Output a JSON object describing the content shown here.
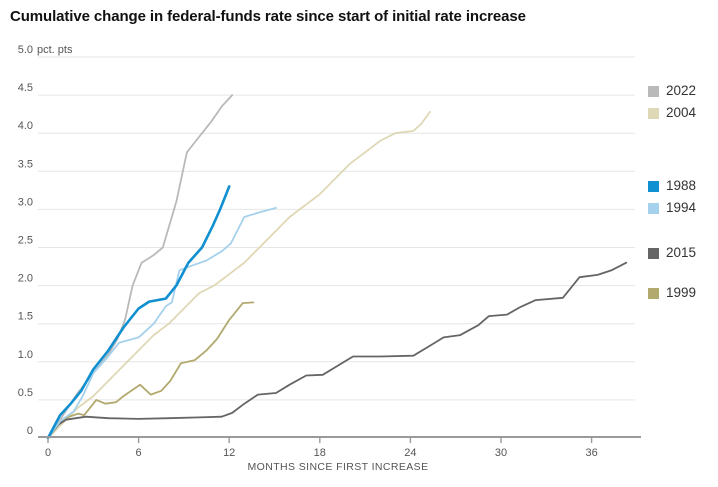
{
  "chart_data": {
    "type": "line",
    "title": "Cumulative change in federal-funds rate since start of initial rate increase",
    "xlabel": "MONTHS SINCE FIRST INCREASE",
    "y_unit_suffix": "pct. pts",
    "x_tick_labels": [
      "0",
      "6",
      "12",
      "18",
      "24",
      "30",
      "36"
    ],
    "x_tick_values": [
      0,
      6,
      12,
      18,
      24,
      30,
      36
    ],
    "y_tick_labels": [
      "0",
      "0.5",
      "1.0",
      "1.5",
      "2.0",
      "2.5",
      "3.0",
      "3.5",
      "4.0",
      "4.5",
      "5.0"
    ],
    "y_tick_values": [
      0,
      0.5,
      1.0,
      1.5,
      2.0,
      2.5,
      3.0,
      3.5,
      4.0,
      4.5,
      5.0
    ],
    "xlim": [
      0,
      38.8
    ],
    "ylim": [
      0,
      5.0
    ],
    "grid": true,
    "legend_position": "right",
    "legend_groups": [
      [
        "2022",
        "2004"
      ],
      [
        "1988",
        "1994"
      ],
      [
        "2015"
      ],
      [
        "1999"
      ]
    ],
    "series": [
      {
        "name": "2004",
        "color": "#ded8b6",
        "points": [
          [
            0,
            0
          ],
          [
            1,
            0.2
          ],
          [
            2,
            0.4
          ],
          [
            3,
            0.55
          ],
          [
            4,
            0.75
          ],
          [
            5,
            0.95
          ],
          [
            6,
            1.15
          ],
          [
            7,
            1.35
          ],
          [
            8,
            1.5
          ],
          [
            9,
            1.7
          ],
          [
            10,
            1.9
          ],
          [
            11,
            2.0
          ],
          [
            12,
            2.15
          ],
          [
            13,
            2.3
          ],
          [
            14,
            2.5
          ],
          [
            15,
            2.7
          ],
          [
            16,
            2.9
          ],
          [
            17,
            3.05
          ],
          [
            18,
            3.2
          ],
          [
            19,
            3.4
          ],
          [
            20,
            3.6
          ],
          [
            21,
            3.75
          ],
          [
            22,
            3.9
          ],
          [
            23,
            4.0
          ],
          [
            24.2,
            4.03
          ],
          [
            24.7,
            4.12
          ],
          [
            25.3,
            4.28
          ]
        ]
      },
      {
        "name": "1999",
        "color": "#b2a96e",
        "points": [
          [
            0,
            0
          ],
          [
            1,
            0.25
          ],
          [
            2,
            0.32
          ],
          [
            2.4,
            0.3
          ],
          [
            3.2,
            0.5
          ],
          [
            3.8,
            0.45
          ],
          [
            4.5,
            0.47
          ],
          [
            5,
            0.55
          ],
          [
            6.1,
            0.7
          ],
          [
            6.8,
            0.57
          ],
          [
            7.5,
            0.62
          ],
          [
            8.1,
            0.75
          ],
          [
            8.8,
            0.98
          ],
          [
            9.7,
            1.02
          ],
          [
            10.5,
            1.15
          ],
          [
            11.2,
            1.3
          ],
          [
            12,
            1.55
          ],
          [
            12.9,
            1.77
          ],
          [
            13.6,
            1.78
          ]
        ]
      },
      {
        "name": "2015",
        "color": "#656565",
        "points": [
          [
            0,
            0
          ],
          [
            0.7,
            0.18
          ],
          [
            1.2,
            0.24
          ],
          [
            2.5,
            0.28
          ],
          [
            4,
            0.26
          ],
          [
            6,
            0.25
          ],
          [
            8,
            0.26
          ],
          [
            10,
            0.27
          ],
          [
            11.5,
            0.28
          ],
          [
            12.2,
            0.33
          ],
          [
            13,
            0.45
          ],
          [
            13.9,
            0.57
          ],
          [
            15.1,
            0.59
          ],
          [
            16,
            0.7
          ],
          [
            17.1,
            0.82
          ],
          [
            18.2,
            0.83
          ],
          [
            19.2,
            0.95
          ],
          [
            20.2,
            1.07
          ],
          [
            22,
            1.07
          ],
          [
            24.2,
            1.08
          ],
          [
            25.2,
            1.2
          ],
          [
            26.2,
            1.32
          ],
          [
            27.3,
            1.35
          ],
          [
            28.5,
            1.48
          ],
          [
            29.2,
            1.6
          ],
          [
            30.4,
            1.62
          ],
          [
            31.3,
            1.72
          ],
          [
            32.3,
            1.81
          ],
          [
            34.1,
            1.84
          ],
          [
            35.2,
            2.11
          ],
          [
            36.4,
            2.14
          ],
          [
            37.3,
            2.2
          ],
          [
            38.3,
            2.3
          ]
        ]
      },
      {
        "name": "2022",
        "color": "#b9b9b9",
        "points": [
          [
            0,
            0
          ],
          [
            0.5,
            0.15
          ],
          [
            1,
            0.3
          ],
          [
            2,
            0.6
          ],
          [
            3,
            0.85
          ],
          [
            4,
            1.1
          ],
          [
            4.6,
            1.3
          ],
          [
            5.1,
            1.55
          ],
          [
            5.6,
            2.0
          ],
          [
            6.2,
            2.3
          ],
          [
            7,
            2.4
          ],
          [
            7.6,
            2.5
          ],
          [
            8.5,
            3.1
          ],
          [
            9.2,
            3.75
          ],
          [
            10,
            3.95
          ],
          [
            10.8,
            4.15
          ],
          [
            11.5,
            4.35
          ],
          [
            12.2,
            4.5
          ]
        ]
      },
      {
        "name": "1994",
        "color": "#a6d1ec",
        "points": [
          [
            0,
            0
          ],
          [
            0.8,
            0.22
          ],
          [
            1.7,
            0.35
          ],
          [
            2.3,
            0.55
          ],
          [
            3,
            0.85
          ],
          [
            3.9,
            1.05
          ],
          [
            4.7,
            1.25
          ],
          [
            6,
            1.32
          ],
          [
            7,
            1.5
          ],
          [
            7.8,
            1.73
          ],
          [
            8.2,
            1.78
          ],
          [
            8.7,
            2.2
          ],
          [
            9.5,
            2.26
          ],
          [
            10.5,
            2.33
          ],
          [
            11.5,
            2.45
          ],
          [
            12.1,
            2.55
          ],
          [
            13,
            2.9
          ],
          [
            14,
            2.96
          ],
          [
            15.1,
            3.02
          ]
        ]
      },
      {
        "name": "1988",
        "color": "#1090d0",
        "points": [
          [
            0,
            0
          ],
          [
            0.8,
            0.3
          ],
          [
            1.5,
            0.45
          ],
          [
            2.2,
            0.62
          ],
          [
            3,
            0.9
          ],
          [
            4,
            1.15
          ],
          [
            5,
            1.45
          ],
          [
            6,
            1.7
          ],
          [
            6.7,
            1.79
          ],
          [
            7.8,
            1.83
          ],
          [
            8.5,
            2.0
          ],
          [
            9.3,
            2.3
          ],
          [
            10.2,
            2.5
          ],
          [
            10.9,
            2.78
          ],
          [
            11.4,
            3.0
          ],
          [
            12,
            3.3
          ]
        ]
      }
    ],
    "legend_order": [
      "2022",
      "2004",
      "1988",
      "1994",
      "2015",
      "1999"
    ]
  },
  "style_colors": {
    "grid": "#e6e6e6",
    "axis": "#9a9a9a",
    "tick_text": "#555555",
    "title_text": "#111111",
    "legend_text": "#333333"
  }
}
